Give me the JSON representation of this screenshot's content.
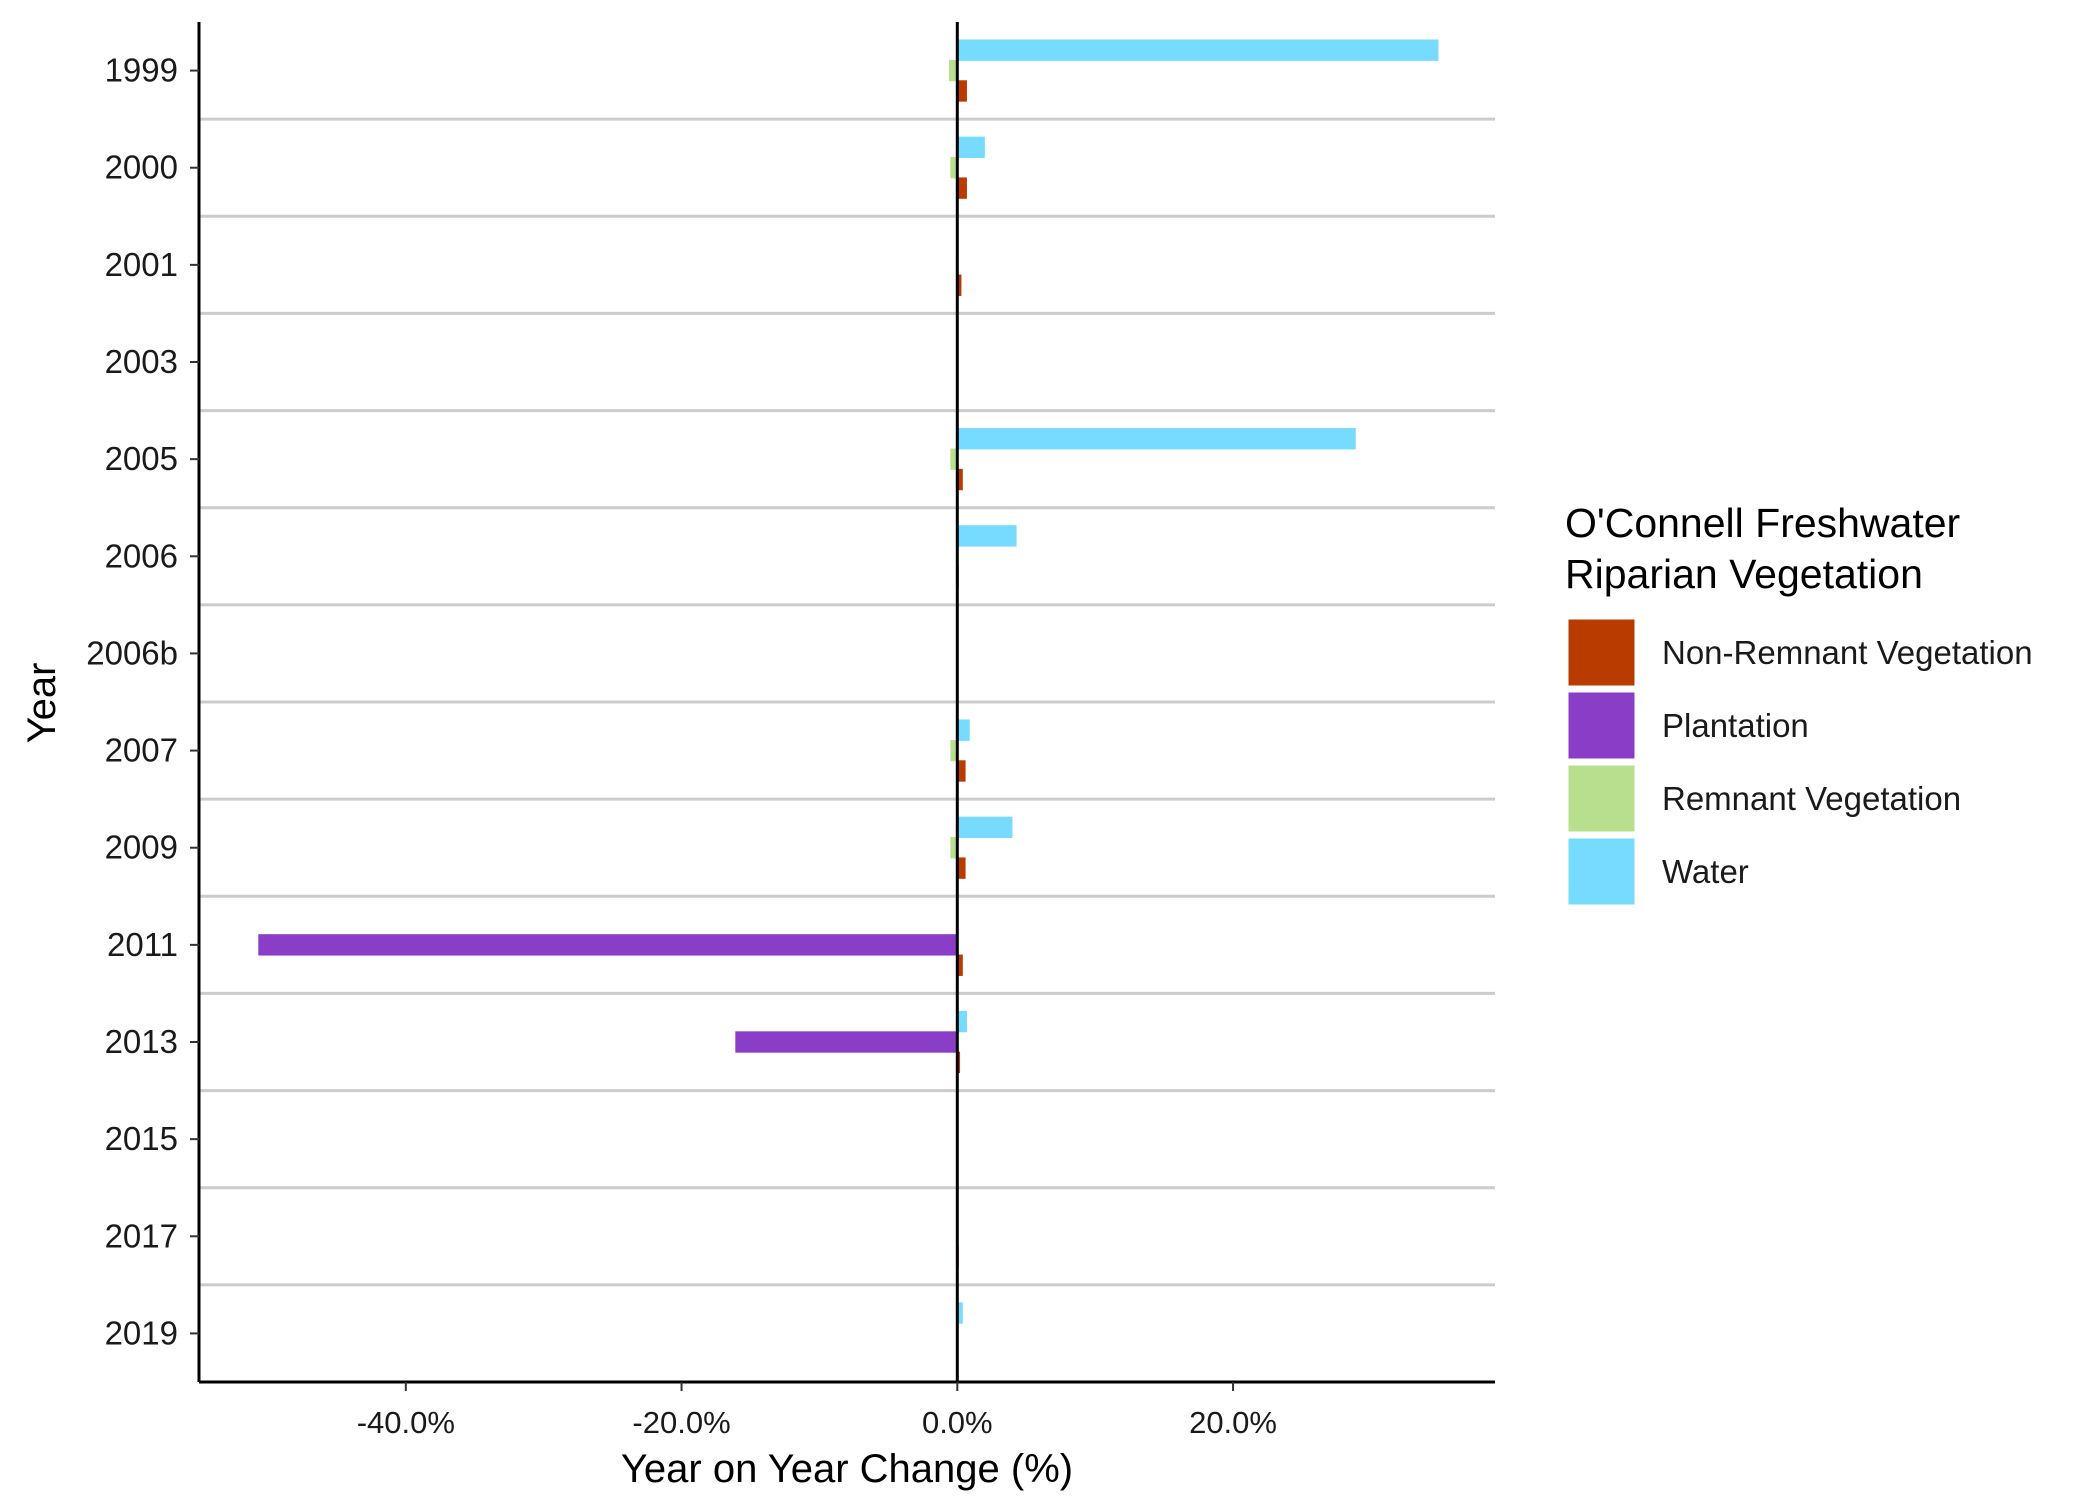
{
  "chart_data": {
    "type": "bar",
    "orientation": "horizontal",
    "xlabel": "Year on Year Change (%)",
    "ylabel": "Year",
    "categories": [
      "1999",
      "2000",
      "2001",
      "2003",
      "2005",
      "2006",
      "2006b",
      "2007",
      "2009",
      "2011",
      "2013",
      "2015",
      "2017",
      "2019"
    ],
    "xlim": [
      -55,
      39
    ],
    "xticks": [
      -40,
      -20,
      0,
      20
    ],
    "xtick_labels": [
      "-40.0%",
      "-20.0%",
      "0.0%",
      "20.0%"
    ],
    "legend": {
      "title_lines": [
        "O'Connell Freshwater",
        "Riparian Vegetation"
      ],
      "position": "right"
    },
    "grid": "horizontal lines between categories",
    "series": [
      {
        "name": "Water",
        "color": "#76dbff",
        "values": [
          34.9,
          2.0,
          0.0,
          0.0,
          28.9,
          4.3,
          0.0,
          0.9,
          4.0,
          0.0,
          0.7,
          0.0,
          0.0,
          0.4
        ]
      },
      {
        "name": "Remnant Vegetation",
        "color": "#b7df8d",
        "values": [
          -0.6,
          -0.5,
          -0.1,
          0.0,
          -0.5,
          0.0,
          0.0,
          -0.5,
          -0.5,
          0.0,
          0.0,
          0.0,
          0.0,
          0.0
        ]
      },
      {
        "name": "Plantation",
        "color": "#8a3dc6",
        "values": [
          0.0,
          0.0,
          0.0,
          0.0,
          0.0,
          0.0,
          0.0,
          0.0,
          0.0,
          -50.7,
          -16.1,
          0.0,
          0.0,
          0.0
        ]
      },
      {
        "name": "Non-Remnant Vegetation",
        "color": "#b83c00",
        "values": [
          0.7,
          0.7,
          0.3,
          0.0,
          0.4,
          0.1,
          0.0,
          0.6,
          0.6,
          0.4,
          0.2,
          0.0,
          0.1,
          0.0
        ]
      }
    ],
    "legend_order": [
      "Non-Remnant Vegetation",
      "Plantation",
      "Remnant Vegetation",
      "Water"
    ]
  }
}
